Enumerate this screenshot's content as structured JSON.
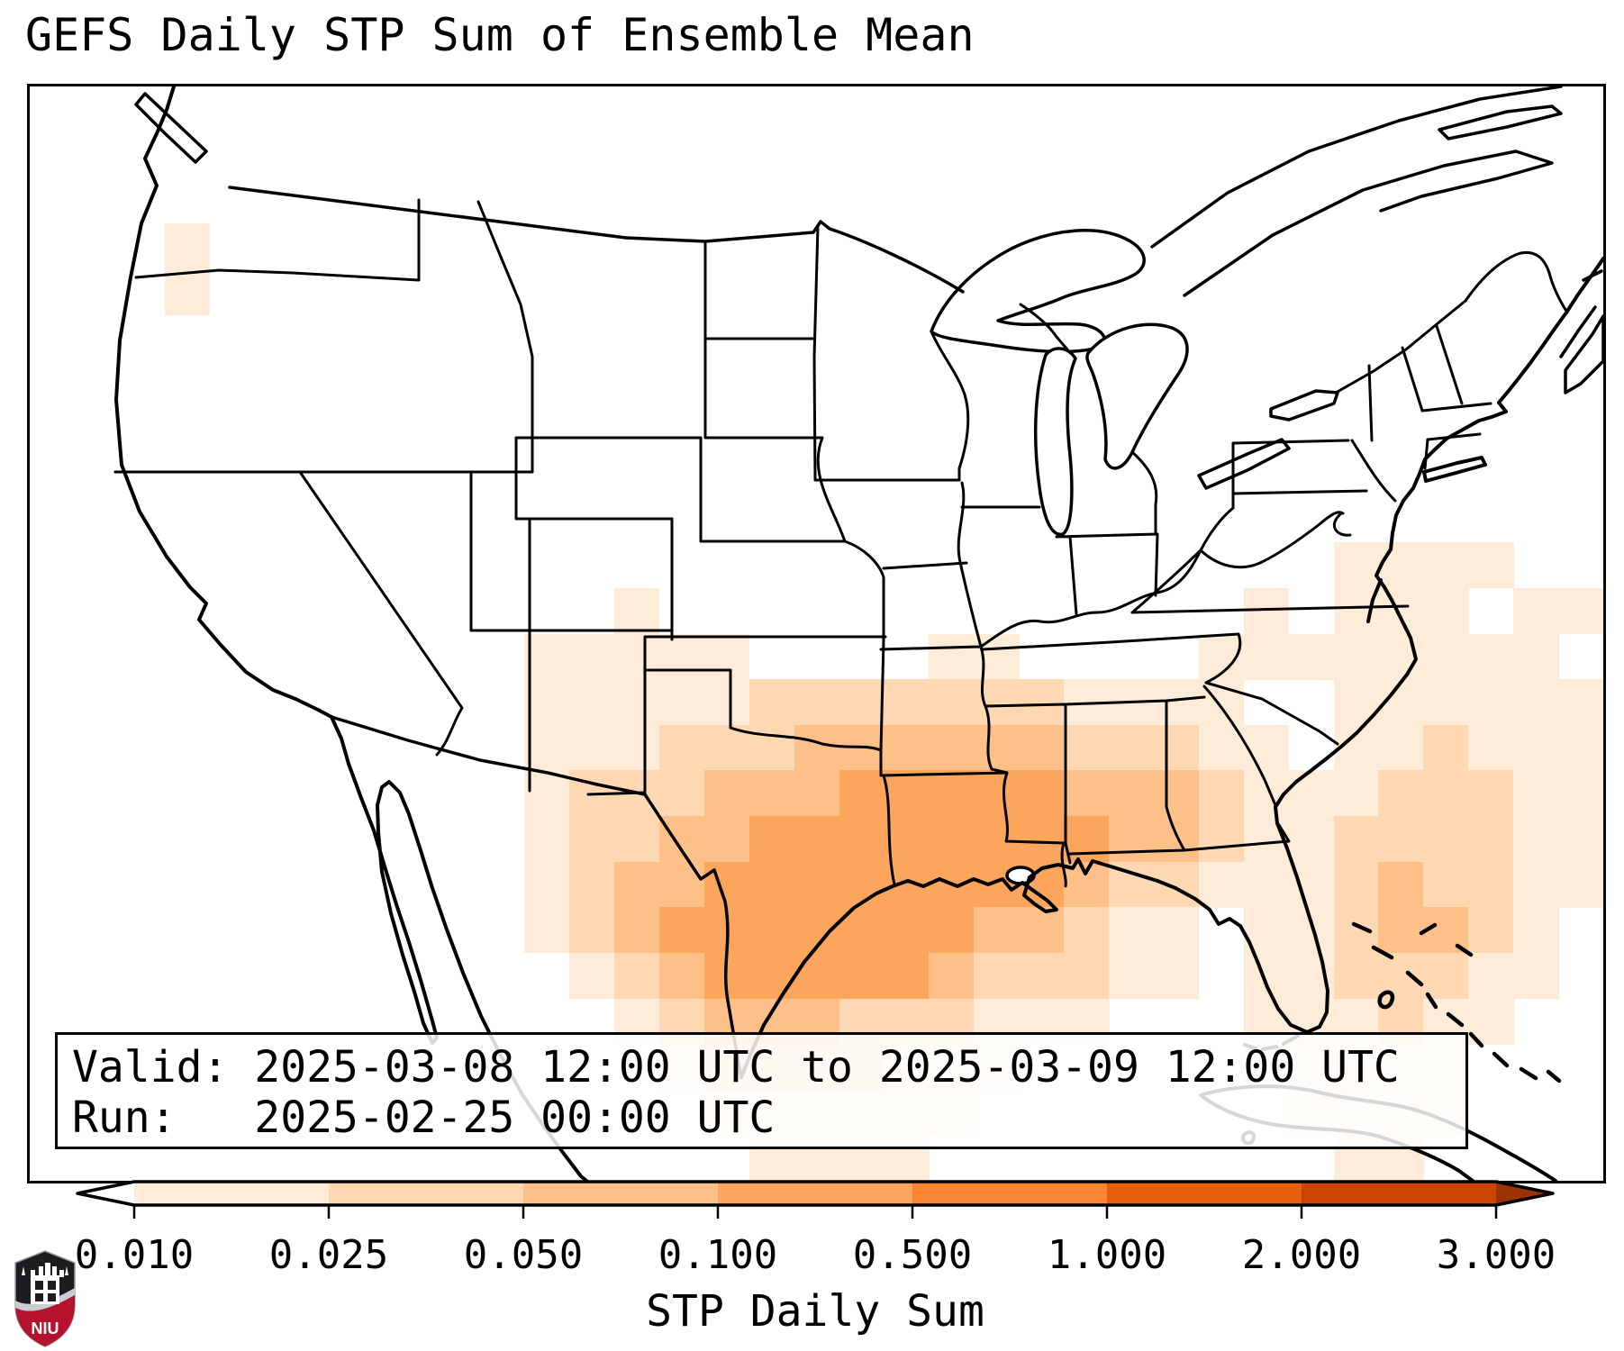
{
  "title": "GEFS Daily STP Sum of Ensemble Mean",
  "info_box": {
    "valid_line": "Valid: 2025-03-08 12:00 UTC to 2025-03-09 12:00 UTC",
    "run_line": "Run:   2025-02-25 00:00 UTC"
  },
  "colorbar": {
    "label": "STP Daily Sum",
    "tick_labels": [
      "0.010",
      "0.025",
      "0.050",
      "0.100",
      "0.500",
      "1.000",
      "2.000",
      "3.000"
    ],
    "segment_colors": [
      "#feecd9",
      "#fdd8b3",
      "#fdc089",
      "#fca55d",
      "#fb8532",
      "#e95e0d",
      "#cb4402"
    ],
    "under_color": "#ffffff",
    "over_color": "#9a3403",
    "outline_color": "#000000"
  },
  "logo": {
    "text": "NIU",
    "shield_color": "#1d1d1f",
    "band_color": "#b6122e",
    "stripe_color": "#c9ccd1"
  },
  "chart_data": {
    "type": "heatmap",
    "title": "GEFS Daily STP Sum of Ensemble Mean",
    "parameter": "STP Daily Sum",
    "valid": "2025-03-08 12:00 UTC to 2025-03-09 12:00 UTC",
    "run": "2025-02-25 00:00 UTC",
    "bins": [
      0.01,
      0.025,
      0.05,
      0.1,
      0.5,
      1.0,
      2.0,
      3.0
    ],
    "bin_colors": [
      "#feecd9",
      "#fdd8b3",
      "#fdc089",
      "#fca55d",
      "#fb8532",
      "#e95e0d",
      "#cb4402"
    ],
    "legend": {
      ".": "< 0.010",
      "1": "0.010-0.025",
      "2": "0.025-0.050",
      "3": "0.050-0.100",
      "4": "0.100-0.500"
    },
    "hotspot": "Maximum STP (0.1-0.5) over Louisiana, southern Mississippi and adjacent Gulf waters; lighter values east Texas through Alabama/Georgia and western Atlantic",
    "grid": {
      "cols": 35,
      "rows": 24,
      "rows_data": [
        "...................................",
        "...................................",
        "...................................",
        "...1...............................",
        "...1...............................",
        "...................................",
        "...................................",
        "...................................",
        "...................................",
        "...................................",
        ".............................1111..",
        ".............1.............1.111.11",
        "...........11111....11....11111111.",
        "...........1111122222221111..111111",
        "...........11122233333322211.112111",
        "...........122233344444333211122211",
        "...........122334444444433211222211",
        "...........123344444444322111232211",
        "...........123444444433211.1123321.",
        "............12344444322211.1122211.",
        ".............12333222111...111211..",
        "..............12222111.....11111...",
        "...............111111.......1111...",
        "................1111.........11...."
      ]
    }
  }
}
